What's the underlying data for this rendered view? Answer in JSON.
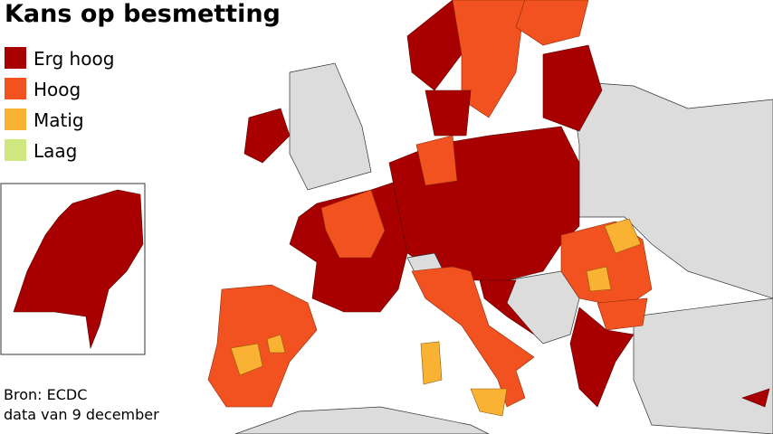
{
  "header": {
    "title": "Kans op besmetting"
  },
  "legend": [
    {
      "label": "Erg hoog",
      "color": "#a80000"
    },
    {
      "label": "Hoog",
      "color": "#f2521f"
    },
    {
      "label": "Matig",
      "color": "#f9b233"
    },
    {
      "label": "Laag",
      "color": "#cfe77f"
    }
  ],
  "footer": {
    "source": "Bron: ECDC",
    "date": "data van 9 december"
  }
}
